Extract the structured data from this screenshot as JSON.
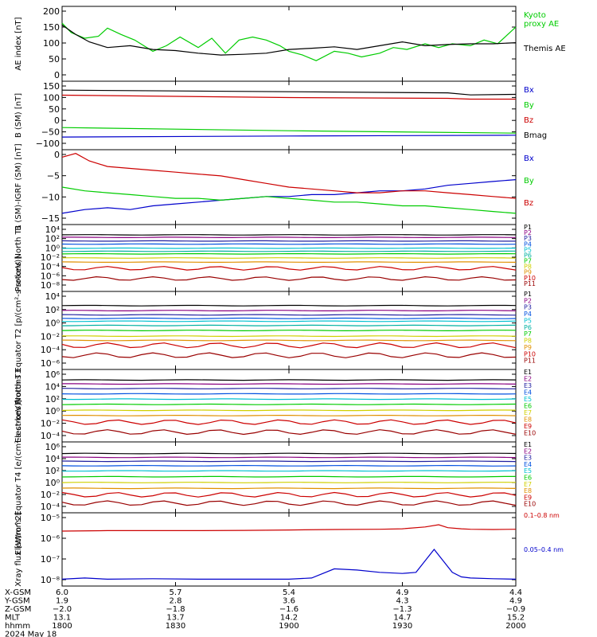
{
  "colors": {
    "black": "#000000",
    "red": "#cc0000",
    "green": "#00cc00",
    "blue": "#0000cc",
    "magenta": "#8a0080",
    "darkblue": "#2020a0",
    "blue2": "#0050e0",
    "cyan": "#00c0d0",
    "teal": "#00b0a0",
    "yellow": "#d0d000",
    "orange": "#e09000",
    "darkred": "#990000"
  },
  "chart_data": [
    {
      "type": "line",
      "ylabel": "AE index [nT]",
      "yticks": [
        "200",
        "150",
        "100",
        "50",
        "0"
      ],
      "ylim": [
        0,
        200
      ],
      "series": [
        {
          "name": "Kyoto proxy AE",
          "legend_lines": [
            "Kyoto",
            "proxy AE"
          ],
          "color": "#00cc00",
          "x": [
            0,
            0.02,
            0.05,
            0.08,
            0.1,
            0.13,
            0.16,
            0.2,
            0.23,
            0.26,
            0.3,
            0.33,
            0.36,
            0.39,
            0.42,
            0.45,
            0.48,
            0.5,
            0.53,
            0.56,
            0.6,
            0.63,
            0.66,
            0.7,
            0.73,
            0.76,
            0.8,
            0.83,
            0.86,
            0.9,
            0.93,
            0.96,
            1
          ],
          "y": [
            155,
            130,
            115,
            120,
            142,
            125,
            110,
            80,
            95,
            118,
            90,
            115,
            75,
            110,
            118,
            110,
            95,
            80,
            70,
            55,
            80,
            75,
            65,
            75,
            90,
            85,
            100,
            90,
            100,
            95,
            110,
            100,
            145
          ]
        },
        {
          "name": "Themis AE",
          "legend_lines": [
            "Themis AE"
          ],
          "color": "#000000",
          "x": [
            0,
            0.03,
            0.06,
            0.1,
            0.15,
            0.2,
            0.25,
            0.3,
            0.35,
            0.4,
            0.45,
            0.5,
            0.55,
            0.6,
            0.65,
            0.7,
            0.75,
            0.8,
            0.85,
            0.9,
            0.95,
            1
          ],
          "y": [
            150,
            125,
            105,
            90,
            95,
            85,
            82,
            75,
            70,
            72,
            75,
            85,
            88,
            92,
            85,
            95,
            105,
            95,
            98,
            100,
            100,
            103
          ]
        }
      ]
    },
    {
      "type": "line",
      "ylabel": "B (SM) [nT]",
      "yticks": [
        "150",
        "100",
        "50",
        "0",
        "−50",
        "−100"
      ],
      "ylim": [
        -110,
        150
      ],
      "series": [
        {
          "name": "Bx",
          "color": "#0000cc",
          "x": [
            0,
            0.5,
            1
          ],
          "y": [
            -62,
            -58,
            -55
          ]
        },
        {
          "name": "By",
          "color": "#00cc00",
          "x": [
            0,
            0.5,
            1
          ],
          "y": [
            -26,
            -38,
            -47
          ]
        },
        {
          "name": "Bz",
          "color": "#cc0000",
          "x": [
            0,
            0.5,
            0.85,
            0.9,
            1
          ],
          "y": [
            97,
            88,
            85,
            82,
            82
          ]
        },
        {
          "name": "Bmag",
          "color": "#000000",
          "x": [
            0,
            0.5,
            0.85,
            0.9,
            1
          ],
          "y": [
            116,
            110,
            106,
            98,
            100
          ]
        }
      ]
    },
    {
      "type": "line",
      "ylabel": "B (SM)-IGRF (SM) [nT]",
      "yticks": [
        "0",
        "−5",
        "−10",
        "−15"
      ],
      "ylim": [
        -17,
        3
      ],
      "series": [
        {
          "name": "Bx",
          "color": "#0000cc",
          "x": [
            0,
            0.05,
            0.1,
            0.15,
            0.2,
            0.25,
            0.3,
            0.35,
            0.4,
            0.45,
            0.5,
            0.55,
            0.6,
            0.65,
            0.7,
            0.75,
            0.8,
            0.85,
            0.9,
            0.95,
            1
          ],
          "y": [
            -14,
            -13,
            -12.5,
            -13,
            -12,
            -11.5,
            -11,
            -10.5,
            -10,
            -9.5,
            -9.5,
            -9,
            -9,
            -8.5,
            -8,
            -8,
            -7.5,
            -6.5,
            -6,
            -5.5,
            -5
          ]
        },
        {
          "name": "By",
          "color": "#00cc00",
          "x": [
            0,
            0.05,
            0.1,
            0.15,
            0.2,
            0.25,
            0.3,
            0.35,
            0.4,
            0.45,
            0.5,
            0.55,
            0.6,
            0.65,
            0.7,
            0.75,
            0.8,
            0.85,
            0.9,
            0.95,
            1
          ],
          "y": [
            -7,
            -8,
            -8.5,
            -9,
            -9.5,
            -10,
            -10,
            -10.5,
            -10,
            -9.5,
            -10,
            -10.5,
            -11,
            -11,
            -11.5,
            -12,
            -12,
            -12.5,
            -13,
            -13.5,
            -14
          ]
        },
        {
          "name": "Bz",
          "color": "#cc0000",
          "x": [
            0,
            0.03,
            0.06,
            0.1,
            0.15,
            0.2,
            0.25,
            0.3,
            0.35,
            0.4,
            0.45,
            0.5,
            0.55,
            0.6,
            0.65,
            0.7,
            0.75,
            0.8,
            0.85,
            0.9,
            0.95,
            1
          ],
          "y": [
            1,
            2,
            0,
            -1.5,
            -2,
            -2.5,
            -3,
            -3.5,
            -4,
            -5,
            -6,
            -7,
            -7.5,
            -8,
            -8.5,
            -8.5,
            -8,
            -8,
            -8.5,
            -9,
            -9.5,
            -10
          ]
        }
      ]
    },
    {
      "type": "line",
      "log": true,
      "ylabel": "Protons North T1",
      "yticks": [
        "10⁴",
        "10²",
        "10⁰",
        "10⁻²",
        "10⁻⁴",
        "10⁻⁶",
        "10⁻⁸"
      ],
      "ylim_exp": [
        -9,
        4
      ],
      "series": [
        {
          "name": "P1",
          "color": "#000000",
          "exp": 2
        },
        {
          "name": "P2",
          "color": "#8a0080",
          "exp": 1.5
        },
        {
          "name": "P3",
          "color": "#2020a0",
          "exp": 0.8
        },
        {
          "name": "P4",
          "color": "#0050e0",
          "exp": 0.2
        },
        {
          "name": "P5",
          "color": "#00c0d0",
          "exp": -0.6
        },
        {
          "name": "P6",
          "color": "#00b0a0",
          "exp": -1.2
        },
        {
          "name": "P7",
          "color": "#00cc00",
          "exp": -1.7
        },
        {
          "name": "P8",
          "color": "#d0d000",
          "exp": -2.5
        },
        {
          "name": "P9",
          "color": "#e09000",
          "exp": -3.3
        },
        {
          "name": "P10",
          "color": "#cc0000",
          "exp": -4.5
        },
        {
          "name": "P11",
          "color": "#990000",
          "exp": -6.5
        }
      ]
    },
    {
      "type": "line",
      "log": true,
      "ylabel": "Protons Equator T2 [p/(cm²-s-sr-keV)]",
      "yticks": [
        "10⁴",
        "10²",
        "10⁰",
        "10⁻²",
        "10⁻⁴",
        "10⁻⁶"
      ],
      "ylim_exp": [
        -7,
        4
      ],
      "series": [
        {
          "name": "P1",
          "color": "#000000",
          "exp": 2
        },
        {
          "name": "P2",
          "color": "#8a0080",
          "exp": 1.3
        },
        {
          "name": "P3",
          "color": "#2020a0",
          "exp": 0.7
        },
        {
          "name": "P4",
          "color": "#0050e0",
          "exp": 0.2
        },
        {
          "name": "P5",
          "color": "#00c0d0",
          "exp": -0.2
        },
        {
          "name": "P6",
          "color": "#00b0a0",
          "exp": -0.8
        },
        {
          "name": "P7",
          "color": "#00cc00",
          "exp": -1.5
        },
        {
          "name": "P8",
          "color": "#d0d000",
          "exp": -2.3
        },
        {
          "name": "P9",
          "color": "#e09000",
          "exp": -2.9
        },
        {
          "name": "P10",
          "color": "#cc0000",
          "exp": -3.6
        },
        {
          "name": "P11",
          "color": "#990000",
          "exp": -5
        }
      ]
    },
    {
      "type": "line",
      "log": true,
      "ylabel": "Electrons North T3",
      "yticks": [
        "10⁶",
        "10⁴",
        "10²",
        "10⁰",
        "10⁻²",
        "10⁻⁴"
      ],
      "ylim_exp": [
        -5,
        6
      ],
      "series": [
        {
          "name": "E1",
          "color": "#000000",
          "exp": 4.4
        },
        {
          "name": "E2",
          "color": "#8a0080",
          "exp": 3.8
        },
        {
          "name": "E3",
          "color": "#2020a0",
          "exp": 3.1
        },
        {
          "name": "E4",
          "color": "#0050e0",
          "exp": 2.3
        },
        {
          "name": "E5",
          "color": "#00c0d0",
          "exp": 1.5
        },
        {
          "name": "E6",
          "color": "#00cc00",
          "exp": 0.7
        },
        {
          "name": "E7",
          "color": "#d0d000",
          "exp": -0.2
        },
        {
          "name": "E8",
          "color": "#e09000",
          "exp": -1
        },
        {
          "name": "E9",
          "color": "#cc0000",
          "exp": -2
        },
        {
          "name": "E10",
          "color": "#990000",
          "exp": -3.5
        }
      ]
    },
    {
      "type": "line",
      "log": true,
      "ylabel": "Electrons Equator T4 [e/(cm²-s-sr-keV)]",
      "yticks": [
        "10⁶",
        "10⁴",
        "10²",
        "10⁰",
        "10⁻²",
        "10⁻⁴"
      ],
      "ylim_exp": [
        -5,
        6
      ],
      "series": [
        {
          "name": "E1",
          "color": "#000000",
          "exp": 4.2
        },
        {
          "name": "E2",
          "color": "#8a0080",
          "exp": 3.6
        },
        {
          "name": "E3",
          "color": "#2020a0",
          "exp": 3
        },
        {
          "name": "E4",
          "color": "#0050e0",
          "exp": 2.3
        },
        {
          "name": "E5",
          "color": "#00c0d0",
          "exp": 1.5
        },
        {
          "name": "E6",
          "color": "#00cc00",
          "exp": 0.6
        },
        {
          "name": "E7",
          "color": "#d0d000",
          "exp": -0.3
        },
        {
          "name": "E8",
          "color": "#e09000",
          "exp": -1.2
        },
        {
          "name": "E9",
          "color": "#cc0000",
          "exp": -2.2
        },
        {
          "name": "E10",
          "color": "#990000",
          "exp": -3.5
        }
      ]
    },
    {
      "type": "line",
      "log": true,
      "ylabel": "Xray flux [W/m^2]",
      "yticks": [
        "10⁻⁵",
        "10⁻⁶",
        "10⁻⁷",
        "10⁻⁸"
      ],
      "ylim_exp": [
        -8.2,
        -5
      ],
      "series": [
        {
          "name": "0.1-0.8 nm",
          "legend_lines": [
            "0.1–0.8 nm"
          ],
          "color": "#cc0000",
          "x": [
            0,
            0.1,
            0.2,
            0.3,
            0.4,
            0.5,
            0.6,
            0.7,
            0.75,
            0.8,
            0.83,
            0.85,
            0.88,
            0.9,
            0.95,
            1
          ],
          "y": [
            -5.8,
            -5.78,
            -5.78,
            -5.78,
            -5.77,
            -5.75,
            -5.73,
            -5.72,
            -5.7,
            -5.62,
            -5.52,
            -5.65,
            -5.7,
            -5.72,
            -5.73,
            -5.72
          ]
        },
        {
          "name": "0.05-0.4 nm",
          "legend_lines": [
            "0.05–0.4 nm"
          ],
          "color": "#0000cc",
          "x": [
            0,
            0.05,
            0.1,
            0.2,
            0.3,
            0.4,
            0.5,
            0.55,
            0.6,
            0.65,
            0.7,
            0.75,
            0.78,
            0.8,
            0.82,
            0.84,
            0.86,
            0.88,
            0.9,
            0.95,
            1
          ],
          "y": [
            -7.9,
            -7.85,
            -7.9,
            -7.88,
            -7.9,
            -7.9,
            -7.9,
            -7.85,
            -7.45,
            -7.5,
            -7.6,
            -7.65,
            -7.6,
            -7.1,
            -6.6,
            -7.1,
            -7.6,
            -7.8,
            -7.85,
            -7.88,
            -7.9
          ]
        }
      ]
    }
  ],
  "footer": {
    "rows": [
      {
        "label": "X-GSM",
        "values": [
          "6.0",
          "5.7",
          "5.4",
          "4.9",
          "4.4"
        ]
      },
      {
        "label": "Y-GSM",
        "values": [
          "1.9",
          "2.8",
          "3.6",
          "4.3",
          "4.9"
        ]
      },
      {
        "label": "Z-GSM",
        "values": [
          "−2.0",
          "−1.8",
          "−1.6",
          "−1.3",
          "−0.9"
        ]
      },
      {
        "label": "MLT",
        "values": [
          "13.1",
          "13.7",
          "14.2",
          "14.7",
          "15.2"
        ]
      },
      {
        "label": "hhmm",
        "values": [
          "1800",
          "1830",
          "1900",
          "1930",
          "2000"
        ]
      }
    ],
    "date": "2024 May 18"
  }
}
